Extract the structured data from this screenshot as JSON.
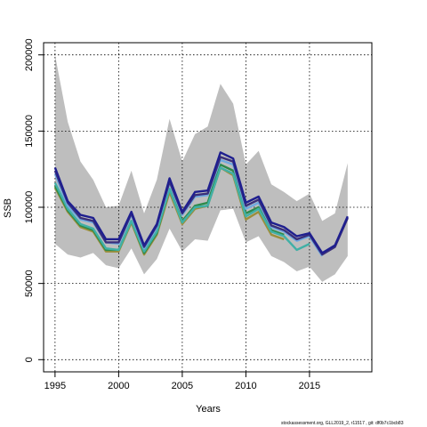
{
  "footnote": "stockassessment.org, GLL2019_2, r11517 , git: df0b7c1bcb83",
  "chart_data": {
    "type": "line",
    "title": "",
    "xlabel": "Years",
    "ylabel": "SSB",
    "xlim": [
      1994.1,
      2019.9
    ],
    "ylim": [
      -8000,
      208000
    ],
    "x_ticks": [
      1995,
      2000,
      2005,
      2010,
      2015
    ],
    "y_ticks": [
      0,
      50000,
      100000,
      150000,
      200000
    ],
    "grid": true,
    "legend": "none",
    "confidence_band": {
      "color": "#bebebe",
      "x": [
        1995,
        1996,
        1997,
        1998,
        1999,
        2000,
        2001,
        2002,
        2003,
        2004,
        2005,
        2006,
        2007,
        2008,
        2009,
        2010,
        2011,
        2012,
        2013,
        2014,
        2015,
        2016,
        2017,
        2018
      ],
      "upper": [
        200000,
        156000,
        130000,
        118000,
        100000,
        101000,
        124000,
        96000,
        118000,
        158000,
        130000,
        148000,
        153000,
        181000,
        168000,
        128000,
        137000,
        115000,
        110000,
        104000,
        109000,
        91000,
        96000,
        129000
      ],
      "lower": [
        76000,
        69000,
        67000,
        70000,
        62000,
        60000,
        73000,
        56000,
        66000,
        86000,
        71000,
        79000,
        78000,
        98000,
        99000,
        77000,
        81000,
        68000,
        64000,
        58000,
        61000,
        51000,
        56000,
        68000
      ]
    },
    "series": [
      {
        "color": "#1f1f8f",
        "values": [
          126000,
          104000,
          95000,
          93000,
          79000,
          79000,
          97000,
          75000,
          89000,
          119000,
          97000,
          110000,
          111000,
          136000,
          132000,
          103000,
          107000,
          90000,
          87000,
          81000,
          83000,
          70000,
          75000,
          94000
        ]
      },
      {
        "color": "#3a2f7a",
        "values": [
          124000,
          103000,
          93000,
          91000,
          77000,
          77000,
          96000,
          74000,
          88000,
          117000,
          96000,
          108000,
          109000,
          133000,
          130000,
          101000,
          105000,
          88000,
          85000,
          79000,
          82000,
          69000,
          74000,
          93000
        ]
      },
      {
        "color": "#6fa9e0",
        "values": [
          122000,
          101000,
          92000,
          90000,
          77000,
          76000,
          95000,
          73000,
          87000,
          116000,
          95000,
          107000,
          108000,
          131000,
          128000,
          99000,
          103000,
          87000,
          84000,
          78000,
          81000,
          68000
        ]
      },
      {
        "color": "#40b0a6",
        "values": [
          116000,
          99000,
          89000,
          86000,
          73000,
          72000,
          91000,
          71000,
          84000,
          112000,
          90000,
          100000,
          101000,
          126000,
          122000,
          94000,
          99000,
          84000,
          81000,
          72000,
          76000
        ]
      },
      {
        "color": "#2d8a4a",
        "values": [
          114000,
          98000,
          88000,
          85000,
          72000,
          72000,
          91000,
          70000,
          83000,
          112000,
          91000,
          101000,
          103000,
          128000,
          124000,
          96000,
          100000,
          85000,
          82000
        ]
      },
      {
        "color": "#9c8e3a",
        "values": [
          113000,
          97000,
          87000,
          84000,
          71000,
          71000,
          90000,
          69000,
          82000,
          110000,
          89000,
          99000,
          101000,
          126000,
          121000,
          92000,
          97000,
          82000,
          79000
        ]
      },
      {
        "color": "#222222",
        "dashed": true,
        "start": 2016,
        "values": [
          69000,
          74000,
          94000
        ]
      }
    ]
  }
}
